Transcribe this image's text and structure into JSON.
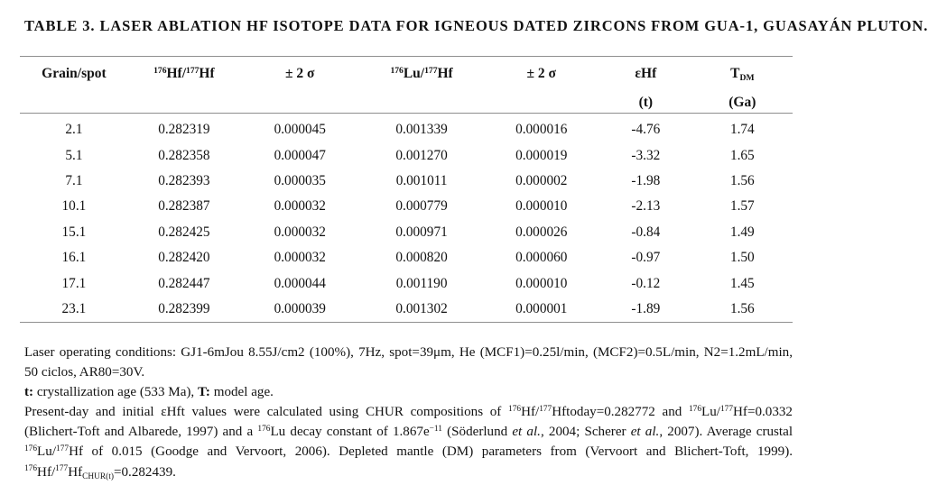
{
  "title": "TABLE 3. LASER ABLATION HF ISOTOPE DATA FOR IGNEOUS DATED ZIRCONS FROM GUA-1, GUASAYÁN PLUTON.",
  "table": {
    "columns": [
      {
        "label": "Grain/spot",
        "label2": ""
      },
      {
        "label": "^{176}Hf/^{177}Hf",
        "label2": ""
      },
      {
        "label": "± 2 σ",
        "label2": ""
      },
      {
        "label": "^{176}Lu/^{177}Hf",
        "label2": ""
      },
      {
        "label": "± 2 σ",
        "label2": ""
      },
      {
        "label": "εHf",
        "label2": "(t)"
      },
      {
        "label": "T_{DM}",
        "label2": "(Ga)"
      }
    ],
    "rows": [
      [
        "2.1",
        "0.282319",
        "0.000045",
        "0.001339",
        "0.000016",
        "-4.76",
        "1.74"
      ],
      [
        "5.1",
        "0.282358",
        "0.000047",
        "0.001270",
        "0.000019",
        "-3.32",
        "1.65"
      ],
      [
        "7.1",
        "0.282393",
        "0.000035",
        "0.001011",
        "0.000002",
        "-1.98",
        "1.56"
      ],
      [
        "10.1",
        "0.282387",
        "0.000032",
        "0.000779",
        "0.000010",
        "-2.13",
        "1.57"
      ],
      [
        "15.1",
        "0.282425",
        "0.000032",
        "0.000971",
        "0.000026",
        "-0.84",
        "1.49"
      ],
      [
        "16.1",
        "0.282420",
        "0.000032",
        "0.000820",
        "0.000060",
        "-0.97",
        "1.50"
      ],
      [
        "17.1",
        "0.282447",
        "0.000044",
        "0.001190",
        "0.000010",
        "-0.12",
        "1.45"
      ],
      [
        "23.1",
        "0.282399",
        "0.000039",
        "0.001302",
        "0.000001",
        "-1.89",
        "1.56"
      ]
    ]
  },
  "footnotes": [
    "Laser operating conditions: GJ1-6mJou 8.55J/cm2 (100%), 7Hz, spot=39μm, He (MCF1)=0.25l/min, (MCF2)=0.5L/min, N2=1.2mL/min, 50 ciclos, AR80=30V.",
    "!{t:} crystallization age (533 Ma), !{T:} model age.",
    "Present-day and initial εHft values were calculated using CHUR compositions of ^{176}Hf/^{177}Hftoday=0.282772 and ^{176}Lu/^{177}Hf=0.0332 (Blichert-Toft and Albarede, 1997) and a ^{176}Lu decay constant of 1.867e^{−11} (Söderlund *{et al.}, 2004; Scherer *{et al.}, 2007). Average crustal ^{176}Lu/^{177}Hf of 0.015 (Goodge and Vervoort, 2006). Depleted mantle (DM) parameters from (Vervoort and Blichert-Toft, 1999). ^{176}Hf/^{177}Hf_{CHUR(t)}=0.282439."
  ],
  "colors": {
    "background": "#ffffff",
    "text": "#121212",
    "rule": "#8f8f8f"
  }
}
